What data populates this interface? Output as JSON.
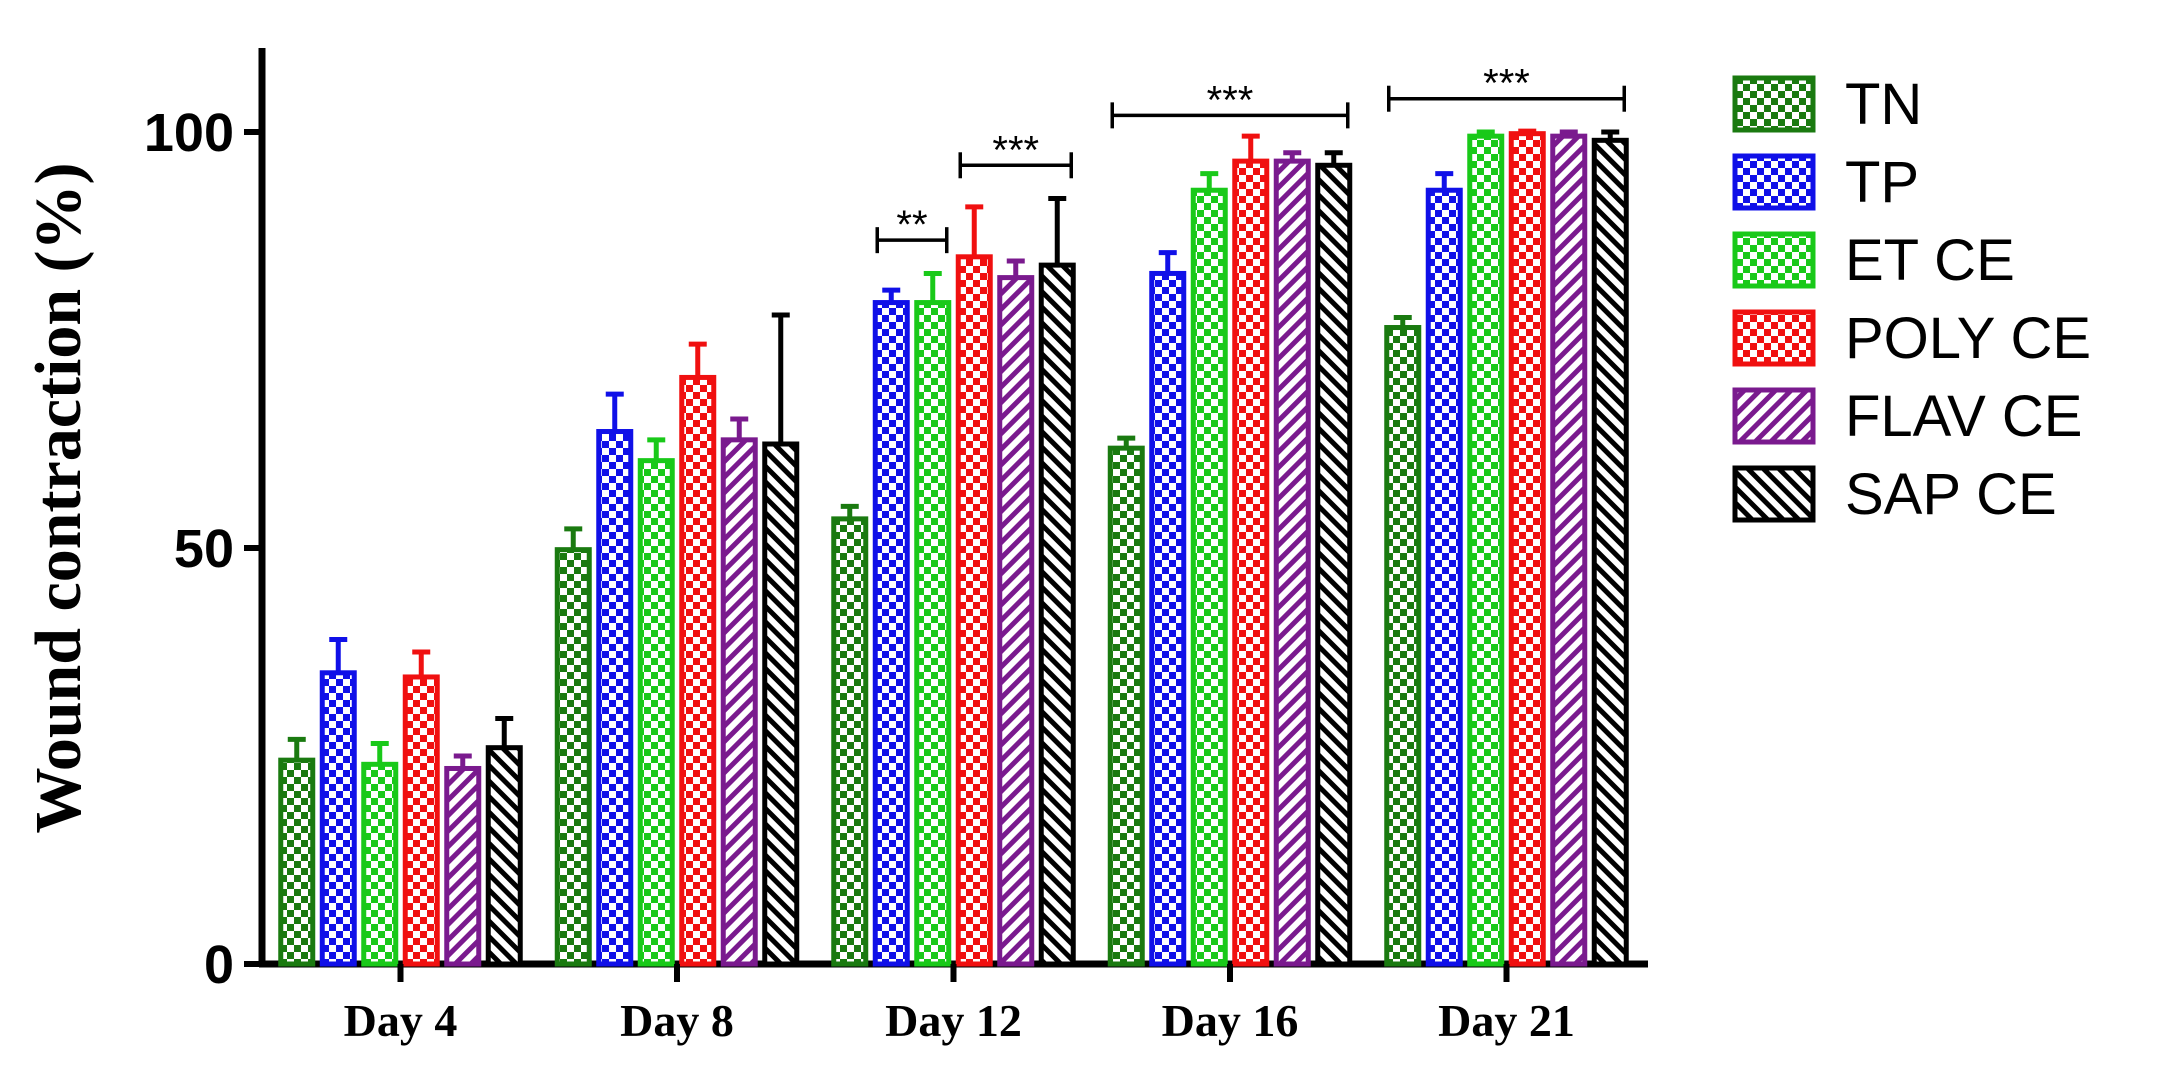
{
  "chart_data": {
    "type": "bar",
    "title": "",
    "xlabel": "",
    "ylabel": "Wound contraction  (%)",
    "ylim": [
      0,
      110
    ],
    "yticks": [
      0,
      50,
      100
    ],
    "grid": false,
    "legend_position": "right",
    "categories": [
      "Day 4",
      "Day 8",
      "Day 12",
      "Day 16",
      "Day 21"
    ],
    "series": [
      {
        "name": "TN",
        "color": "#1a7a10",
        "pattern": "checker",
        "values": [
          24.5,
          49.8,
          53.5,
          62,
          76.5
        ],
        "errors": [
          2.5,
          2.5,
          1.5,
          1.2,
          1.2
        ]
      },
      {
        "name": "TP",
        "color": "#1010e8",
        "pattern": "checker",
        "values": [
          35,
          64,
          79.5,
          83,
          93
        ],
        "errors": [
          4,
          4.5,
          1.5,
          2.5,
          2
        ]
      },
      {
        "name": "ET CE",
        "color": "#19c919",
        "pattern": "checker",
        "values": [
          24,
          60.5,
          79.5,
          93,
          99.5
        ],
        "errors": [
          2.5,
          2.5,
          3.5,
          2,
          0.5
        ]
      },
      {
        "name": "POLY CE",
        "color": "#f01010",
        "pattern": "checker",
        "values": [
          34.5,
          70.5,
          85,
          96.5,
          99.8
        ],
        "errors": [
          3,
          4,
          6,
          3,
          0.3
        ]
      },
      {
        "name": "FLAV CE",
        "color": "#7a1a8e",
        "pattern": "hatch-right",
        "values": [
          23.5,
          63,
          82.5,
          96.5,
          99.5
        ],
        "errors": [
          1.5,
          2.5,
          2,
          1,
          0.5
        ]
      },
      {
        "name": "SAP CE",
        "color": "#000000",
        "pattern": "hatch-left",
        "values": [
          26,
          62.5,
          84,
          96,
          99
        ],
        "errors": [
          3.5,
          15.5,
          8,
          1.5,
          1
        ]
      }
    ],
    "significance": [
      {
        "category": "Day 12",
        "from_series": 1,
        "to_series": 2,
        "label": "**",
        "y": 87
      },
      {
        "category": "Day 12",
        "from_series": 3,
        "to_series": 5,
        "label": "***",
        "y": 96
      },
      {
        "category": "Day 16",
        "from_series": 0,
        "to_series": 5,
        "label": "***",
        "y": 102
      },
      {
        "category": "Day 21",
        "from_series": 0,
        "to_series": 5,
        "label": "***",
        "y": 104
      }
    ]
  }
}
